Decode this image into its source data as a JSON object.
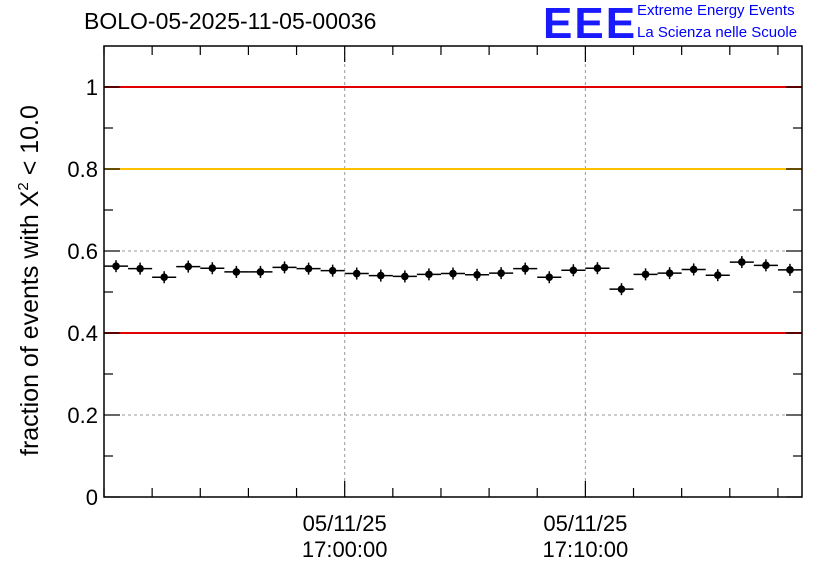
{
  "chart_data": {
    "type": "scatter",
    "title": "BOLO-05-2025-11-05-00036",
    "ylabel_main": "fraction of events with X",
    "ylabel_sup": "2",
    "ylabel_tail": " < 10.0",
    "ylim": [
      0,
      1.1
    ],
    "yticks": [
      0,
      0.2,
      0.4,
      0.6,
      0.8,
      1
    ],
    "ytick_labels": [
      "0",
      "0.2",
      "0.4",
      "0.6",
      "0.8",
      "1"
    ],
    "xlim_minutes": [
      -10,
      19
    ],
    "xticks_major": [
      {
        "value": 0,
        "label_date": "05/11/25",
        "label_time": "17:00:00"
      },
      {
        "value": 10,
        "label_date": "05/11/25",
        "label_time": "17:10:00"
      }
    ],
    "xticks_minor_step": 2,
    "reference_lines": [
      {
        "y": 1.0,
        "color": "#e00000"
      },
      {
        "y": 0.8,
        "color": "#ffc000"
      },
      {
        "y": 0.4,
        "color": "#e00000"
      }
    ],
    "bin_width_minutes": 1,
    "x": [
      -9.5,
      -8.5,
      -7.5,
      -6.5,
      -5.5,
      -4.5,
      -3.5,
      -2.5,
      -1.5,
      -0.5,
      0.5,
      1.5,
      2.5,
      3.5,
      4.5,
      5.5,
      6.5,
      7.5,
      8.5,
      9.5,
      10.5,
      11.5,
      12.5,
      13.5,
      14.5,
      15.5,
      16.5,
      17.5,
      18.5
    ],
    "values": [
      0.563,
      0.557,
      0.536,
      0.562,
      0.558,
      0.549,
      0.549,
      0.56,
      0.557,
      0.552,
      0.545,
      0.54,
      0.538,
      0.543,
      0.545,
      0.542,
      0.546,
      0.557,
      0.536,
      0.553,
      0.558,
      0.507,
      0.543,
      0.546,
      0.555,
      0.541,
      0.573,
      0.565,
      0.554
    ]
  },
  "logo": {
    "mark": "EEE",
    "line1": "Extreme Energy Events",
    "line2": "La Scienza nelle Scuole"
  }
}
